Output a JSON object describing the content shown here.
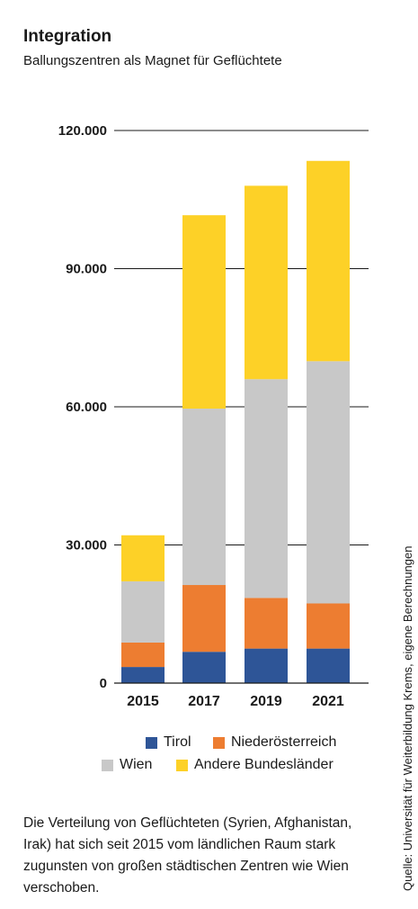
{
  "header": {
    "title": "Integration",
    "subtitle": "Ballungszentren als Magnet für Geflüchtete"
  },
  "chart_data": {
    "type": "bar",
    "stacked": true,
    "categories": [
      "2015",
      "2017",
      "2019",
      "2021"
    ],
    "series": [
      {
        "name": "Tirol",
        "color": "#2e5597",
        "values": [
          3500,
          6800,
          7500,
          7500
        ]
      },
      {
        "name": "Niederösterreich",
        "color": "#ed7d31",
        "values": [
          5300,
          14500,
          11000,
          9800
        ]
      },
      {
        "name": "Wien",
        "color": "#c8c8c8",
        "values": [
          13300,
          38300,
          47500,
          52600
        ]
      },
      {
        "name": "Andere Bundesländer",
        "color": "#fdd127",
        "values": [
          10000,
          42000,
          42000,
          43500
        ]
      }
    ],
    "yticks": [
      "0",
      "30.000",
      "60.000",
      "90.000",
      "120.000"
    ],
    "ylim": [
      0,
      120000
    ],
    "grid": true,
    "legend_position": "bottom"
  },
  "legend": {
    "items": [
      {
        "label": "Tirol",
        "color": "#2e5597"
      },
      {
        "label": "Niederösterreich",
        "color": "#ed7d31"
      },
      {
        "label": "Wien",
        "color": "#c8c8c8"
      },
      {
        "label": "Andere Bundesländer",
        "color": "#fdd127"
      }
    ]
  },
  "note": "Die Verteilung von Geflüchteten (Syrien, Afghanistan, Irak) hat sich seit 2015 vom ländlichen Raum stark zugunsten von großen städtischen Zentren wie Wien verschoben.",
  "source": "Quelle: Universität für Weiterbildung Krems, eigene Berechnungen"
}
